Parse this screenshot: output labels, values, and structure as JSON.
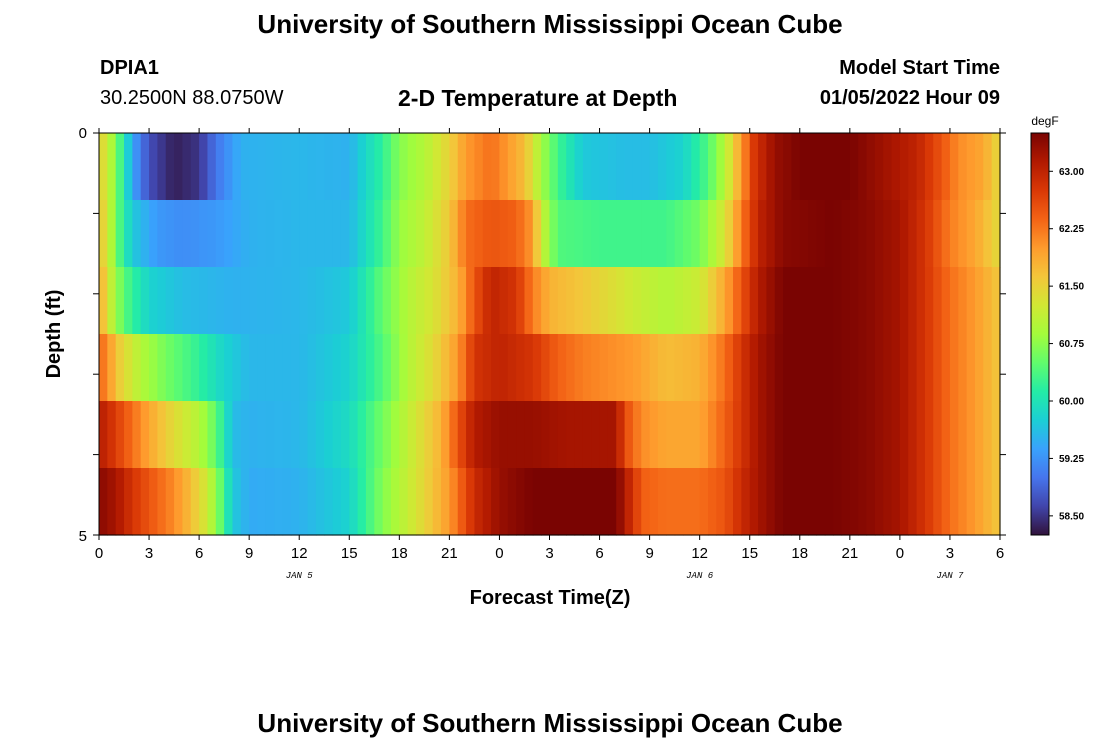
{
  "header": {
    "title": "University of Southern Mississippi Ocean Cube",
    "station": "DPIA1",
    "coords": "30.2500N  88.0750W",
    "subtitle": "2-D Temperature at Depth",
    "model_start_label": "Model Start Time",
    "model_start_value": "01/05/2022 Hour 09"
  },
  "footer": {
    "title": "University of Southern Mississippi Ocean Cube"
  },
  "chart_data": {
    "type": "heatmap",
    "title": "2-D Temperature at Depth",
    "xlabel": "Forecast Time(Z)",
    "ylabel": "Depth (ft)",
    "x_tick_labels": [
      "0",
      "3",
      "6",
      "9",
      "12",
      "15",
      "18",
      "21",
      "0",
      "3",
      "6",
      "9",
      "12",
      "15",
      "18",
      "21",
      "0",
      "3",
      "6"
    ],
    "date_labels": [
      {
        "label": "JAN 5",
        "tick_index": 4
      },
      {
        "label": "JAN 6",
        "tick_index": 12
      },
      {
        "label": "JAN 7",
        "tick_index": 17
      }
    ],
    "x_range_hours": [
      0,
      54
    ],
    "y_tick_labels": [
      "0",
      "5"
    ],
    "y_range": [
      0,
      5
    ],
    "colorbar": {
      "unit": "degF",
      "range": [
        58.25,
        63.5
      ],
      "ticks": [
        "58.50",
        "59.25",
        "60.00",
        "60.75",
        "61.50",
        "62.25",
        "63.00"
      ],
      "tick_values": [
        58.5,
        59.25,
        60.0,
        60.75,
        61.5,
        62.25,
        63.0
      ],
      "colors": [
        "#30123b",
        "#4145ab",
        "#4675ed",
        "#39a2fc",
        "#1bcfd4",
        "#24eca6",
        "#61fc6c",
        "#a4fc3b",
        "#d1e834",
        "#f3c63a",
        "#fe9b2d",
        "#f36315",
        "#d93806",
        "#b11901",
        "#7a0402"
      ]
    },
    "layers": [
      {
        "depth_index": 0,
        "keyframes": [
          [
            0,
            61.5
          ],
          [
            0.4,
            61.3
          ],
          [
            0.8,
            60.9
          ],
          [
            1.3,
            60.3
          ],
          [
            2,
            59.4
          ],
          [
            3,
            58.7
          ],
          [
            4.5,
            58.35
          ],
          [
            6,
            58.5
          ],
          [
            7,
            59.0
          ],
          [
            8.5,
            59.5
          ],
          [
            12,
            59.55
          ],
          [
            15,
            59.5
          ],
          [
            17,
            60.2
          ],
          [
            18,
            60.7
          ],
          [
            19.5,
            61.0
          ],
          [
            21,
            61.5
          ],
          [
            22,
            62.0
          ],
          [
            23.5,
            62.3
          ],
          [
            25.5,
            61.7
          ],
          [
            26.5,
            60.9
          ],
          [
            27.5,
            60.3
          ],
          [
            29,
            59.7
          ],
          [
            31.5,
            59.6
          ],
          [
            33,
            59.6
          ],
          [
            35,
            59.8
          ],
          [
            36.5,
            60.4
          ],
          [
            37.5,
            61.0
          ],
          [
            38.5,
            62.0
          ],
          [
            39.3,
            62.8
          ],
          [
            40.5,
            63.3
          ],
          [
            42,
            63.5
          ],
          [
            45,
            63.5
          ],
          [
            47,
            63.25
          ],
          [
            49,
            63.0
          ],
          [
            50.5,
            62.5
          ],
          [
            51.5,
            62.1
          ],
          [
            53,
            61.9
          ],
          [
            54,
            61.4
          ]
        ]
      },
      {
        "depth_index": 1,
        "keyframes": [
          [
            0,
            61.6
          ],
          [
            0.4,
            61.4
          ],
          [
            0.8,
            60.9
          ],
          [
            1.3,
            60.3
          ],
          [
            2,
            59.7
          ],
          [
            3.5,
            59.3
          ],
          [
            5,
            59.2
          ],
          [
            7,
            59.3
          ],
          [
            9,
            59.5
          ],
          [
            12,
            59.55
          ],
          [
            15,
            59.55
          ],
          [
            17,
            60.3
          ],
          [
            18,
            60.8
          ],
          [
            19.5,
            61.1
          ],
          [
            21,
            61.6
          ],
          [
            22,
            62.3
          ],
          [
            23.5,
            62.5
          ],
          [
            25,
            62.4
          ],
          [
            26,
            62.0
          ],
          [
            26.5,
            61.2
          ],
          [
            27.5,
            60.4
          ],
          [
            30,
            60.3
          ],
          [
            34,
            60.3
          ],
          [
            36,
            60.6
          ],
          [
            37.5,
            61.3
          ],
          [
            38.5,
            62.2
          ],
          [
            39.5,
            63.0
          ],
          [
            41,
            63.4
          ],
          [
            44,
            63.5
          ],
          [
            46,
            63.4
          ],
          [
            48,
            63.2
          ],
          [
            49.5,
            62.8
          ],
          [
            51,
            62.2
          ],
          [
            52.5,
            61.9
          ],
          [
            54,
            61.4
          ]
        ]
      },
      {
        "depth_index": 2,
        "keyframes": [
          [
            0,
            61.9
          ],
          [
            0.4,
            61.5
          ],
          [
            1,
            60.8
          ],
          [
            1.8,
            60.3
          ],
          [
            3,
            59.8
          ],
          [
            5,
            59.6
          ],
          [
            8,
            59.5
          ],
          [
            12,
            59.55
          ],
          [
            15,
            59.7
          ],
          [
            17,
            60.5
          ],
          [
            18.5,
            61.0
          ],
          [
            20,
            61.3
          ],
          [
            21.5,
            61.8
          ],
          [
            22.5,
            62.5
          ],
          [
            23.5,
            63.0
          ],
          [
            25,
            62.8
          ],
          [
            26,
            62.2
          ],
          [
            27,
            61.8
          ],
          [
            29,
            61.6
          ],
          [
            32,
            61.2
          ],
          [
            34,
            61.0
          ],
          [
            36,
            61.2
          ],
          [
            37.5,
            61.9
          ],
          [
            38.5,
            62.5
          ],
          [
            39.5,
            63.1
          ],
          [
            41,
            63.5
          ],
          [
            44,
            63.5
          ],
          [
            46,
            63.4
          ],
          [
            48,
            63.2
          ],
          [
            49.5,
            62.8
          ],
          [
            51,
            62.3
          ],
          [
            52.5,
            62.0
          ],
          [
            54,
            61.6
          ]
        ]
      },
      {
        "depth_index": 3,
        "keyframes": [
          [
            0,
            62.4
          ],
          [
            0.6,
            62.0
          ],
          [
            1.3,
            61.5
          ],
          [
            2.5,
            61.0
          ],
          [
            4,
            60.6
          ],
          [
            6,
            60.2
          ],
          [
            7.5,
            59.8
          ],
          [
            9,
            59.55
          ],
          [
            12,
            59.55
          ],
          [
            15,
            59.8
          ],
          [
            17,
            60.4
          ],
          [
            18.5,
            61.0
          ],
          [
            20,
            61.4
          ],
          [
            21.5,
            62.0
          ],
          [
            22.5,
            62.8
          ],
          [
            24,
            63.0
          ],
          [
            26,
            62.8
          ],
          [
            27.5,
            62.4
          ],
          [
            29,
            62.2
          ],
          [
            32,
            62.0
          ],
          [
            34,
            61.7
          ],
          [
            36,
            61.8
          ],
          [
            37.5,
            62.3
          ],
          [
            38.5,
            62.8
          ],
          [
            39.5,
            63.2
          ],
          [
            41,
            63.5
          ],
          [
            44,
            63.5
          ],
          [
            46,
            63.4
          ],
          [
            48,
            63.2
          ],
          [
            49.5,
            62.8
          ],
          [
            51,
            62.3
          ],
          [
            52.5,
            62.0
          ],
          [
            54,
            61.6
          ]
        ]
      },
      {
        "depth_index": 4,
        "keyframes": [
          [
            0,
            63.1
          ],
          [
            0.8,
            62.8
          ],
          [
            2,
            62.3
          ],
          [
            3,
            61.9
          ],
          [
            4.5,
            61.4
          ],
          [
            6,
            61.0
          ],
          [
            7,
            60.5
          ],
          [
            8,
            59.6
          ],
          [
            9,
            59.5
          ],
          [
            12,
            59.55
          ],
          [
            15,
            59.9
          ],
          [
            17,
            60.6
          ],
          [
            18.5,
            61.1
          ],
          [
            20.5,
            61.8
          ],
          [
            21.5,
            62.5
          ],
          [
            22.5,
            63.1
          ],
          [
            24,
            63.3
          ],
          [
            26,
            63.3
          ],
          [
            28,
            63.2
          ],
          [
            31,
            63.2
          ],
          [
            31.5,
            62.6
          ],
          [
            32.5,
            62.1
          ],
          [
            34,
            61.9
          ],
          [
            36,
            61.9
          ],
          [
            37.5,
            62.4
          ],
          [
            38.5,
            62.8
          ],
          [
            39.5,
            63.2
          ],
          [
            41,
            63.5
          ],
          [
            44,
            63.5
          ],
          [
            46,
            63.4
          ],
          [
            48,
            63.2
          ],
          [
            49.5,
            62.8
          ],
          [
            51,
            62.3
          ],
          [
            52.5,
            62.0
          ],
          [
            54,
            61.6
          ]
        ]
      },
      {
        "depth_index": 5,
        "keyframes": [
          [
            0,
            63.4
          ],
          [
            1,
            63.2
          ],
          [
            2,
            62.8
          ],
          [
            3,
            62.5
          ],
          [
            4.5,
            62.1
          ],
          [
            5.5,
            61.7
          ],
          [
            6.5,
            61.2
          ],
          [
            7.3,
            60.5
          ],
          [
            8,
            59.7
          ],
          [
            9,
            59.45
          ],
          [
            12,
            59.5
          ],
          [
            15,
            59.8
          ],
          [
            17,
            60.7
          ],
          [
            19,
            61.3
          ],
          [
            21,
            62.0
          ],
          [
            22.5,
            62.9
          ],
          [
            24,
            63.3
          ],
          [
            26,
            63.5
          ],
          [
            28,
            63.6
          ],
          [
            30,
            63.7
          ],
          [
            31,
            63.5
          ],
          [
            32,
            62.8
          ],
          [
            32.6,
            62.4
          ],
          [
            34,
            62.3
          ],
          [
            36,
            62.3
          ],
          [
            37.5,
            62.5
          ],
          [
            38.5,
            62.9
          ],
          [
            39.5,
            63.2
          ],
          [
            41,
            63.5
          ],
          [
            44,
            63.5
          ],
          [
            46,
            63.4
          ],
          [
            48,
            63.2
          ],
          [
            49.5,
            62.8
          ],
          [
            51,
            62.3
          ],
          [
            52.5,
            62.0
          ],
          [
            54,
            61.6
          ]
        ]
      }
    ],
    "grid": false,
    "legend": "colorbar-right"
  }
}
